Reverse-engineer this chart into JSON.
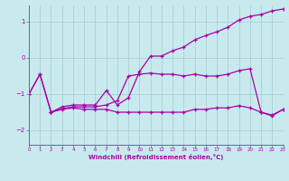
{
  "xlabel": "Windchill (Refroidissement éolien,°C)",
  "bg_color": "#c8eaee",
  "grid_color": "#a0cccc",
  "line_color": "#aa00aa",
  "spine_color": "#666699",
  "xlim": [
    0,
    23
  ],
  "ylim": [
    -2.4,
    1.45
  ],
  "yticks": [
    -2,
    -1,
    0,
    1
  ],
  "xticks": [
    0,
    1,
    2,
    3,
    4,
    5,
    6,
    7,
    8,
    9,
    10,
    11,
    12,
    13,
    14,
    15,
    16,
    17,
    18,
    19,
    20,
    21,
    22,
    23
  ],
  "line1_x": [
    0,
    1,
    2,
    3,
    4,
    5,
    6,
    7,
    8,
    9,
    10,
    11,
    12,
    13,
    14,
    15,
    16,
    17,
    18,
    19,
    20,
    21,
    22,
    23
  ],
  "line1_y": [
    -1.0,
    -0.45,
    -1.5,
    -1.35,
    -1.3,
    -1.3,
    -1.3,
    -0.9,
    -1.3,
    -1.1,
    -0.38,
    0.05,
    0.05,
    0.2,
    0.3,
    0.5,
    0.62,
    0.72,
    0.85,
    1.05,
    1.15,
    1.2,
    1.3,
    1.35
  ],
  "line2_x": [
    2,
    3,
    4,
    5,
    6,
    7,
    8,
    9,
    10,
    11,
    12,
    13,
    14,
    15,
    16,
    17,
    18,
    19,
    20,
    21,
    22,
    23
  ],
  "line2_y": [
    -1.5,
    -1.42,
    -1.38,
    -1.42,
    -1.42,
    -1.42,
    -1.5,
    -1.5,
    -1.5,
    -1.5,
    -1.5,
    -1.5,
    -1.5,
    -1.42,
    -1.42,
    -1.38,
    -1.38,
    -1.32,
    -1.38,
    -1.5,
    -1.58,
    -1.42
  ],
  "line3_x": [
    0,
    1,
    2,
    3,
    4,
    5,
    6,
    7,
    8,
    9,
    10,
    11,
    12,
    13,
    14,
    15,
    16,
    17,
    18,
    19,
    20,
    21,
    22,
    23
  ],
  "line3_y": [
    -1.0,
    -0.45,
    -1.5,
    -1.4,
    -1.35,
    -1.35,
    -1.35,
    -1.3,
    -1.18,
    -0.5,
    -0.45,
    -0.42,
    -0.45,
    -0.45,
    -0.5,
    -0.45,
    -0.5,
    -0.5,
    -0.45,
    -0.35,
    -0.3,
    -1.5,
    -1.6,
    -1.42
  ]
}
